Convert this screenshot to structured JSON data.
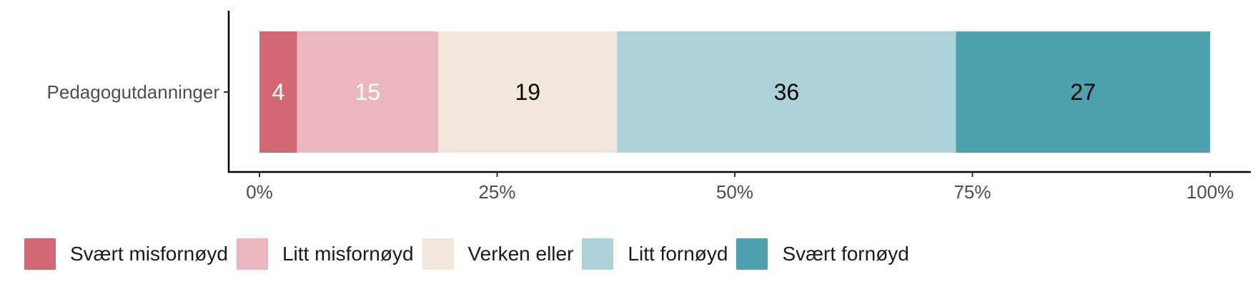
{
  "chart_data": {
    "type": "bar",
    "orientation": "horizontal",
    "stacked": true,
    "normalized": true,
    "categories": [
      "Pedagogutdanninger"
    ],
    "series": [
      {
        "name": "Svært misfornøyd",
        "values": [
          4
        ],
        "color": "#d26874",
        "label_color": "#ffffff"
      },
      {
        "name": "Litt misfornøyd",
        "values": [
          15
        ],
        "color": "#e9b7bd",
        "label_color": "#ffffff"
      },
      {
        "name": "Verken eller",
        "values": [
          19
        ],
        "color": "#f1e7da",
        "label_color": "#000000"
      },
      {
        "name": "Litt fornøyd",
        "values": [
          36
        ],
        "color": "#acd2d8",
        "label_color": "#000000"
      },
      {
        "name": "Svært fornøyd",
        "values": [
          27
        ],
        "color": "#4fa1af",
        "label_color": "#000000"
      }
    ],
    "x_ticks": [
      "0%",
      "25%",
      "50%",
      "75%",
      "100%"
    ],
    "xlim": [
      0,
      1
    ],
    "legend_position": "bottom",
    "grid": false
  }
}
